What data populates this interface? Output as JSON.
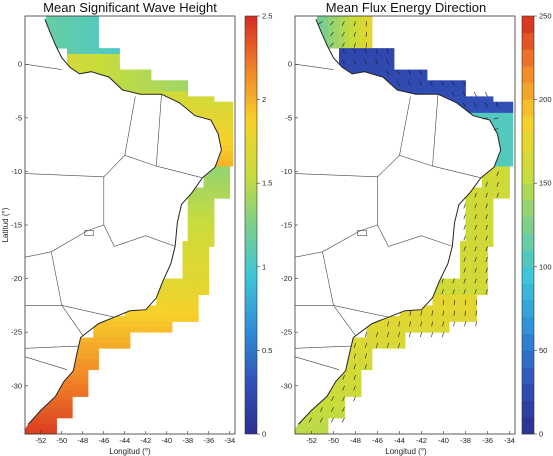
{
  "chart_data": [
    {
      "type": "heatmap",
      "title": "Mean Significant Wave Height",
      "xlabel": "Longitud (°)",
      "ylabel": "Latitud (°)",
      "xlim": [
        -53.5,
        -33.5
      ],
      "ylim": [
        -34.5,
        4.5
      ],
      "x_ticks": [
        "-52",
        "-50",
        "-48",
        "-46",
        "-44",
        "-42",
        "-40",
        "-38",
        "-36",
        "-34"
      ],
      "y_ticks": [
        "0",
        "-5",
        "-10",
        "-15",
        "-20",
        "-25",
        "-30"
      ],
      "colorbar": {
        "min": 0,
        "max": 2.5,
        "ticks": [
          "2.5",
          "2",
          "1.5",
          "1",
          "0.5",
          "0"
        ]
      }
    },
    {
      "type": "heatmap",
      "title": "Mean Flux Energy Direction",
      "xlabel": "Longitud (°)",
      "ylabel": "Latitud (°)",
      "xlim": [
        -53.5,
        -33.5
      ],
      "ylim": [
        -34.5,
        4.5
      ],
      "x_ticks": [
        "-52",
        "-50",
        "-48",
        "-46",
        "-44",
        "-42",
        "-40",
        "-38",
        "-36",
        "-34"
      ],
      "y_ticks": [
        "0",
        "-5",
        "-10",
        "-15",
        "-20",
        "-25",
        "-30"
      ],
      "colorbar": {
        "min": 0,
        "max": 250,
        "ticks": [
          "250",
          "200",
          "150",
          "100",
          "50",
          "0"
        ]
      }
    }
  ]
}
